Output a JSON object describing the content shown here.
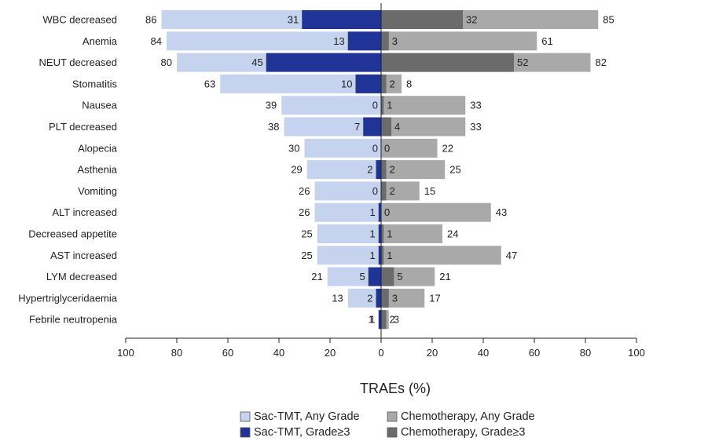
{
  "chart_data": {
    "type": "bar",
    "orientation": "horizontal-butterfly",
    "title": "",
    "xlabel": "TRAEs (%)",
    "xlim": [
      -100,
      100
    ],
    "xticks": [
      "100",
      "80",
      "60",
      "40",
      "20",
      "0",
      "20",
      "40",
      "60",
      "80",
      "100"
    ],
    "grid": false,
    "legend_position": "bottom",
    "categories": [
      "WBC decreased",
      "Anemia",
      "NEUT decreased",
      "Stomatitis",
      "Nausea",
      "PLT decreased",
      "Alopecia",
      "Asthenia",
      "Vomiting",
      "ALT increased",
      "Decreased appetite",
      "AST increased",
      "LYM decreased",
      "Hypertriglyceridaemia",
      "Febrile neutropenia"
    ],
    "series": [
      {
        "name": "Sac-TMT, Any Grade",
        "side": "left",
        "color": "#c5d3ee",
        "values": [
          86,
          84,
          80,
          63,
          39,
          38,
          30,
          29,
          26,
          26,
          25,
          25,
          21,
          13,
          1
        ]
      },
      {
        "name": "Sac-TMT, Grade≥3",
        "side": "left",
        "color": "#1f3496",
        "values": [
          31,
          13,
          45,
          10,
          0,
          7,
          0,
          2,
          0,
          1,
          1,
          1,
          5,
          2,
          1
        ]
      },
      {
        "name": "Chemotherapy, Any Grade",
        "side": "right",
        "color": "#a9a9a9",
        "values": [
          85,
          61,
          82,
          8,
          33,
          33,
          22,
          25,
          15,
          43,
          24,
          47,
          21,
          17,
          3
        ]
      },
      {
        "name": "Chemotherapy, Grade≥3",
        "side": "right",
        "color": "#6b6b6b",
        "values": [
          32,
          3,
          52,
          2,
          1,
          4,
          0,
          2,
          2,
          0,
          1,
          1,
          5,
          3,
          2
        ]
      }
    ]
  }
}
